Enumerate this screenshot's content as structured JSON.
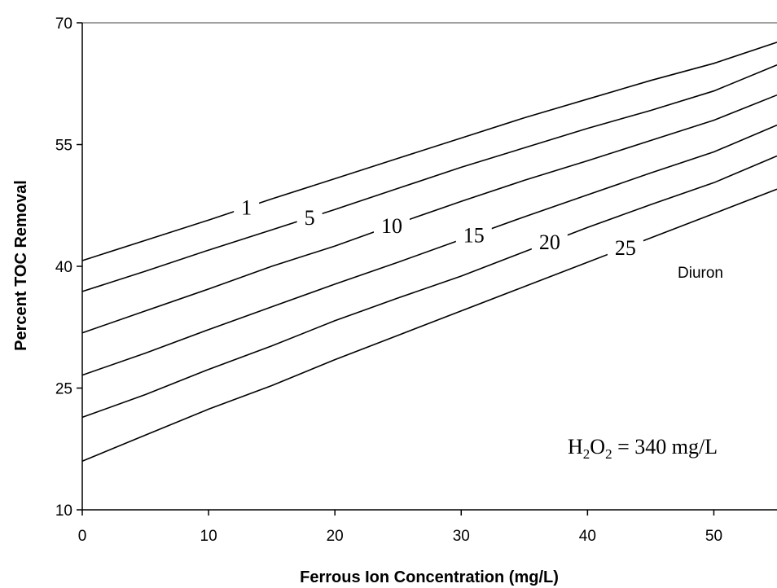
{
  "chart_data": {
    "type": "line",
    "title": "",
    "xlabel": "Ferrous Ion Concentration (mg/L)",
    "ylabel": "Percent TOC Removal",
    "xlim": [
      0,
      55
    ],
    "ylim": [
      10,
      70
    ],
    "xticks": [
      "0",
      "10",
      "20",
      "30",
      "40",
      "50"
    ],
    "xtick_values": [
      0,
      10,
      20,
      30,
      40,
      50
    ],
    "yticks": [
      "10",
      "25",
      "40",
      "55",
      "70"
    ],
    "ytick_values": [
      10,
      25,
      40,
      55,
      70
    ],
    "grid": false,
    "series": [
      {
        "name": "1",
        "x": [
          0,
          5,
          10,
          15,
          20,
          25,
          30,
          35,
          40,
          45,
          50,
          55
        ],
        "y": [
          40.7,
          43.2,
          45.7,
          48.3,
          50.8,
          53.3,
          55.8,
          58.3,
          60.6,
          62.9,
          65.0,
          67.6
        ],
        "label_x": 13.0
      },
      {
        "name": "5",
        "x": [
          0,
          5,
          10,
          15,
          20,
          25,
          30,
          35,
          40,
          45,
          50,
          55
        ],
        "y": [
          36.9,
          39.4,
          42.0,
          44.5,
          47.0,
          49.6,
          52.2,
          54.6,
          57.0,
          59.2,
          61.6,
          64.8
        ],
        "label_x": 18.0
      },
      {
        "name": "10",
        "x": [
          0,
          5,
          10,
          15,
          20,
          25,
          30,
          35,
          40,
          45,
          50,
          55
        ],
        "y": [
          31.8,
          34.5,
          37.2,
          40.0,
          42.5,
          45.3,
          48.0,
          50.6,
          53.0,
          55.5,
          58.0,
          61.1
        ],
        "label_x": 24.5
      },
      {
        "name": "15",
        "x": [
          0,
          5,
          10,
          15,
          20,
          25,
          30,
          35,
          40,
          45,
          50,
          55
        ],
        "y": [
          26.6,
          29.3,
          32.2,
          35.0,
          37.8,
          40.5,
          43.3,
          46.1,
          48.8,
          51.5,
          54.1,
          57.4
        ],
        "label_x": 31.0
      },
      {
        "name": "20",
        "x": [
          0,
          5,
          10,
          15,
          20,
          25,
          30,
          35,
          40,
          45,
          50,
          55
        ],
        "y": [
          21.4,
          24.2,
          27.3,
          30.2,
          33.3,
          36.1,
          38.8,
          41.8,
          44.8,
          47.6,
          50.3,
          53.6
        ],
        "label_x": 37.0
      },
      {
        "name": "25",
        "x": [
          0,
          5,
          10,
          15,
          20,
          25,
          30,
          35,
          40,
          45,
          50,
          55
        ],
        "y": [
          16.0,
          19.2,
          22.4,
          25.3,
          28.5,
          31.5,
          34.5,
          37.5,
          40.5,
          43.5,
          46.5,
          49.5
        ],
        "label_x": 43.0
      }
    ],
    "annotations": {
      "compound": "Diuron",
      "condition_prefix": "H",
      "condition_sub1": "2",
      "condition_mid": "O",
      "condition_sub2": "2",
      "condition_value": " = 340 mg/L"
    },
    "colors": {
      "line": "#000000",
      "background": "#ffffff",
      "frame": "#808080"
    }
  }
}
